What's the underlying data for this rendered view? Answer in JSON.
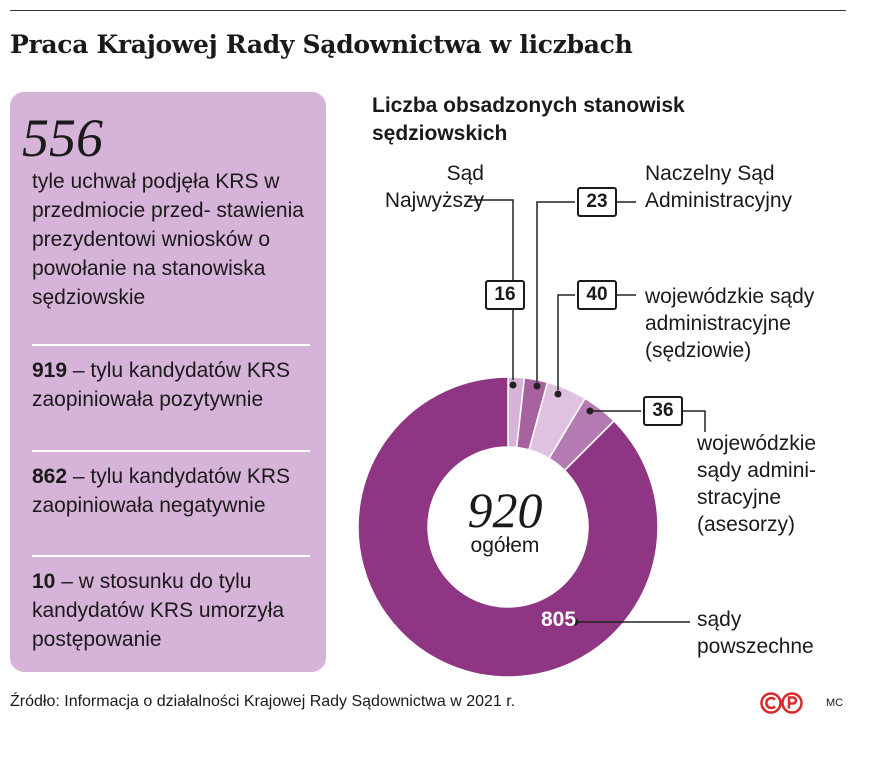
{
  "header": {
    "title": "Praca Krajowej Rady Sądownictwa w liczbach"
  },
  "panel": {
    "lead_number": "556",
    "lead_text": "tyle uchwał podjęła KRS w przedmiocie przed- stawienia prezydentowi wniosków o powołanie na stanowiska sędziowskie",
    "stats": [
      {
        "value": "919",
        "text": " – tylu kandydatów KRS zaopiniowała pozytywnie"
      },
      {
        "value": "862",
        "text": " – tylu kandydatów KRS zaopiniowała negatywnie"
      },
      {
        "value": "10",
        "text": " – w stosunku do tylu kandydatów KRS umorzyła postępowanie"
      }
    ]
  },
  "chart_data": {
    "type": "pie",
    "title": "Liczba obsadzonych stanowisk sędziowskich",
    "total_value": "920",
    "total_label": "ogółem",
    "categories": [
      "Sąd Najwyższy",
      "Naczelny Sąd Administracyjny",
      "wojewódzkie sądy administracyjne (sędziowie)",
      "wojewódzkie sądy administracyjne (asesorzy)",
      "sądy powszechne"
    ],
    "values": [
      16,
      23,
      40,
      36,
      805
    ],
    "labels": [
      "Sąd\nNajwyższy",
      "Naczelny Sąd\nAdministracyjny",
      "wojewódzkie sądy\nadministracyjne\n(sędziowie)",
      "wojewódzkie\nsądy admini-\nstracyjne\n(asesorzy)",
      "sądy\npowszechne"
    ],
    "colors": [
      "#d7b3d9",
      "#a8619f",
      "#dfc2e0",
      "#b37bb2",
      "#8e3583"
    ],
    "donut": true
  },
  "footer": {
    "source": "Źródło: Informacja o działalności Krajowej Rady Sądownictwa w 2021 r.",
    "logo_icon": "copyright-protected-icon",
    "author": "MC"
  }
}
